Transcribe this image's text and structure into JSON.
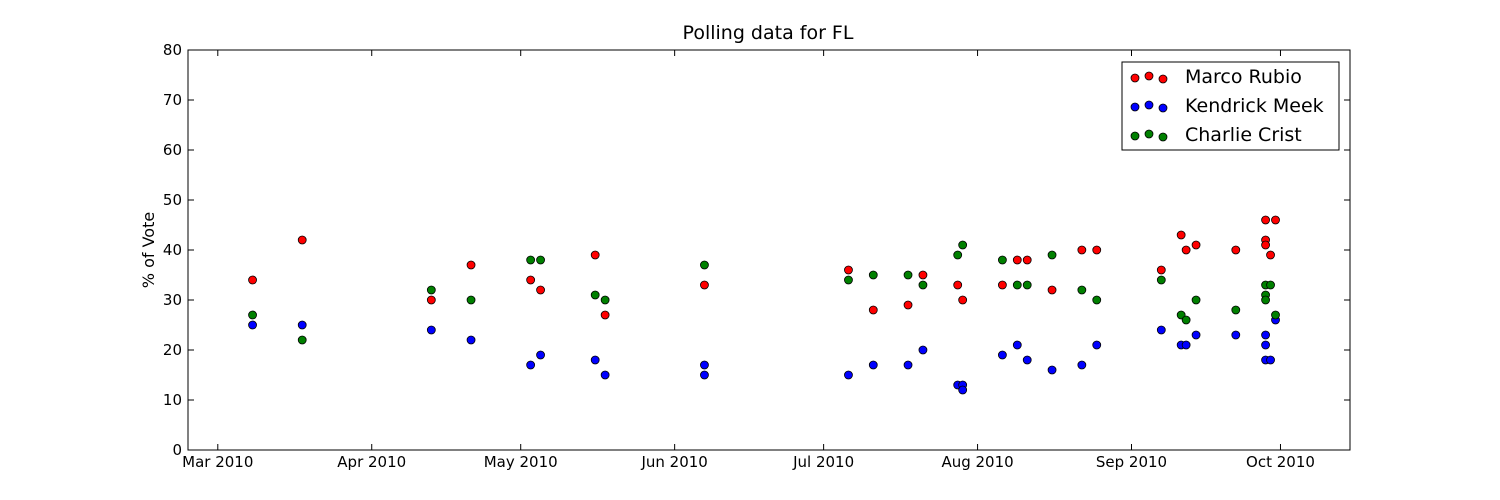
{
  "chart_data": {
    "type": "scatter",
    "title": "Polling data for FL",
    "xlabel": "",
    "ylabel": "% of Vote",
    "x_axis_type": "date",
    "xlim": [
      "2010-02-23",
      "2010-10-15"
    ],
    "ylim": [
      0,
      80
    ],
    "y_ticks": [
      0,
      10,
      20,
      30,
      40,
      50,
      60,
      70,
      80
    ],
    "x_ticks": [
      {
        "date": "2010-03-01",
        "label": "Mar 2010"
      },
      {
        "date": "2010-04-01",
        "label": "Apr 2010"
      },
      {
        "date": "2010-05-01",
        "label": "May 2010"
      },
      {
        "date": "2010-06-01",
        "label": "Jun 2010"
      },
      {
        "date": "2010-07-01",
        "label": "Jul 2010"
      },
      {
        "date": "2010-08-01",
        "label": "Aug 2010"
      },
      {
        "date": "2010-09-01",
        "label": "Sep 2010"
      },
      {
        "date": "2010-10-01",
        "label": "Oct 2010"
      }
    ],
    "grid": false,
    "legend_position": "top-right",
    "series": [
      {
        "name": "Marco Rubio",
        "color": "#ff0000",
        "points": [
          {
            "x": "2010-03-08",
            "y": 34
          },
          {
            "x": "2010-03-18",
            "y": 42
          },
          {
            "x": "2010-04-13",
            "y": 30
          },
          {
            "x": "2010-04-21",
            "y": 37
          },
          {
            "x": "2010-05-03",
            "y": 34
          },
          {
            "x": "2010-05-05",
            "y": 32
          },
          {
            "x": "2010-05-16",
            "y": 39
          },
          {
            "x": "2010-05-18",
            "y": 27
          },
          {
            "x": "2010-06-07",
            "y": 33
          },
          {
            "x": "2010-07-06",
            "y": 36
          },
          {
            "x": "2010-07-11",
            "y": 28
          },
          {
            "x": "2010-07-18",
            "y": 29
          },
          {
            "x": "2010-07-21",
            "y": 35
          },
          {
            "x": "2010-07-28",
            "y": 33
          },
          {
            "x": "2010-07-29",
            "y": 30
          },
          {
            "x": "2010-08-06",
            "y": 33
          },
          {
            "x": "2010-08-09",
            "y": 38
          },
          {
            "x": "2010-08-11",
            "y": 38
          },
          {
            "x": "2010-08-16",
            "y": 32
          },
          {
            "x": "2010-08-22",
            "y": 40
          },
          {
            "x": "2010-08-25",
            "y": 40
          },
          {
            "x": "2010-09-07",
            "y": 36
          },
          {
            "x": "2010-09-11",
            "y": 43
          },
          {
            "x": "2010-09-12",
            "y": 40
          },
          {
            "x": "2010-09-14",
            "y": 41
          },
          {
            "x": "2010-09-22",
            "y": 40
          },
          {
            "x": "2010-09-28",
            "y": 46
          },
          {
            "x": "2010-09-28",
            "y": 42
          },
          {
            "x": "2010-09-28",
            "y": 41
          },
          {
            "x": "2010-09-29",
            "y": 39
          },
          {
            "x": "2010-09-30",
            "y": 46
          }
        ]
      },
      {
        "name": "Kendrick Meek",
        "color": "#0000ff",
        "points": [
          {
            "x": "2010-03-08",
            "y": 25
          },
          {
            "x": "2010-03-18",
            "y": 25
          },
          {
            "x": "2010-04-13",
            "y": 24
          },
          {
            "x": "2010-04-21",
            "y": 22
          },
          {
            "x": "2010-05-03",
            "y": 17
          },
          {
            "x": "2010-05-05",
            "y": 19
          },
          {
            "x": "2010-05-16",
            "y": 18
          },
          {
            "x": "2010-05-18",
            "y": 15
          },
          {
            "x": "2010-06-07",
            "y": 17
          },
          {
            "x": "2010-06-07",
            "y": 15
          },
          {
            "x": "2010-07-06",
            "y": 15
          },
          {
            "x": "2010-07-11",
            "y": 17
          },
          {
            "x": "2010-07-18",
            "y": 17
          },
          {
            "x": "2010-07-21",
            "y": 20
          },
          {
            "x": "2010-07-28",
            "y": 13
          },
          {
            "x": "2010-07-29",
            "y": 13
          },
          {
            "x": "2010-07-29",
            "y": 12
          },
          {
            "x": "2010-08-06",
            "y": 19
          },
          {
            "x": "2010-08-09",
            "y": 21
          },
          {
            "x": "2010-08-11",
            "y": 18
          },
          {
            "x": "2010-08-16",
            "y": 16
          },
          {
            "x": "2010-08-22",
            "y": 17
          },
          {
            "x": "2010-08-25",
            "y": 21
          },
          {
            "x": "2010-09-07",
            "y": 24
          },
          {
            "x": "2010-09-11",
            "y": 21
          },
          {
            "x": "2010-09-12",
            "y": 21
          },
          {
            "x": "2010-09-14",
            "y": 23
          },
          {
            "x": "2010-09-22",
            "y": 23
          },
          {
            "x": "2010-09-28",
            "y": 23
          },
          {
            "x": "2010-09-28",
            "y": 21
          },
          {
            "x": "2010-09-28",
            "y": 18
          },
          {
            "x": "2010-09-29",
            "y": 18
          },
          {
            "x": "2010-09-30",
            "y": 26
          }
        ]
      },
      {
        "name": "Charlie Crist",
        "color": "#008000",
        "points": [
          {
            "x": "2010-03-08",
            "y": 27
          },
          {
            "x": "2010-03-18",
            "y": 22
          },
          {
            "x": "2010-04-13",
            "y": 32
          },
          {
            "x": "2010-04-21",
            "y": 30
          },
          {
            "x": "2010-05-03",
            "y": 38
          },
          {
            "x": "2010-05-05",
            "y": 38
          },
          {
            "x": "2010-05-16",
            "y": 31
          },
          {
            "x": "2010-05-18",
            "y": 30
          },
          {
            "x": "2010-06-07",
            "y": 37
          },
          {
            "x": "2010-07-06",
            "y": 34
          },
          {
            "x": "2010-07-11",
            "y": 35
          },
          {
            "x": "2010-07-18",
            "y": 35
          },
          {
            "x": "2010-07-21",
            "y": 33
          },
          {
            "x": "2010-07-28",
            "y": 39
          },
          {
            "x": "2010-07-29",
            "y": 41
          },
          {
            "x": "2010-08-06",
            "y": 38
          },
          {
            "x": "2010-08-09",
            "y": 33
          },
          {
            "x": "2010-08-11",
            "y": 33
          },
          {
            "x": "2010-08-16",
            "y": 39
          },
          {
            "x": "2010-08-22",
            "y": 32
          },
          {
            "x": "2010-08-25",
            "y": 30
          },
          {
            "x": "2010-09-07",
            "y": 34
          },
          {
            "x": "2010-09-11",
            "y": 27
          },
          {
            "x": "2010-09-12",
            "y": 26
          },
          {
            "x": "2010-09-14",
            "y": 30
          },
          {
            "x": "2010-09-22",
            "y": 28
          },
          {
            "x": "2010-09-28",
            "y": 33
          },
          {
            "x": "2010-09-28",
            "y": 31
          },
          {
            "x": "2010-09-28",
            "y": 30
          },
          {
            "x": "2010-09-29",
            "y": 33
          },
          {
            "x": "2010-09-30",
            "y": 27
          }
        ]
      }
    ]
  }
}
